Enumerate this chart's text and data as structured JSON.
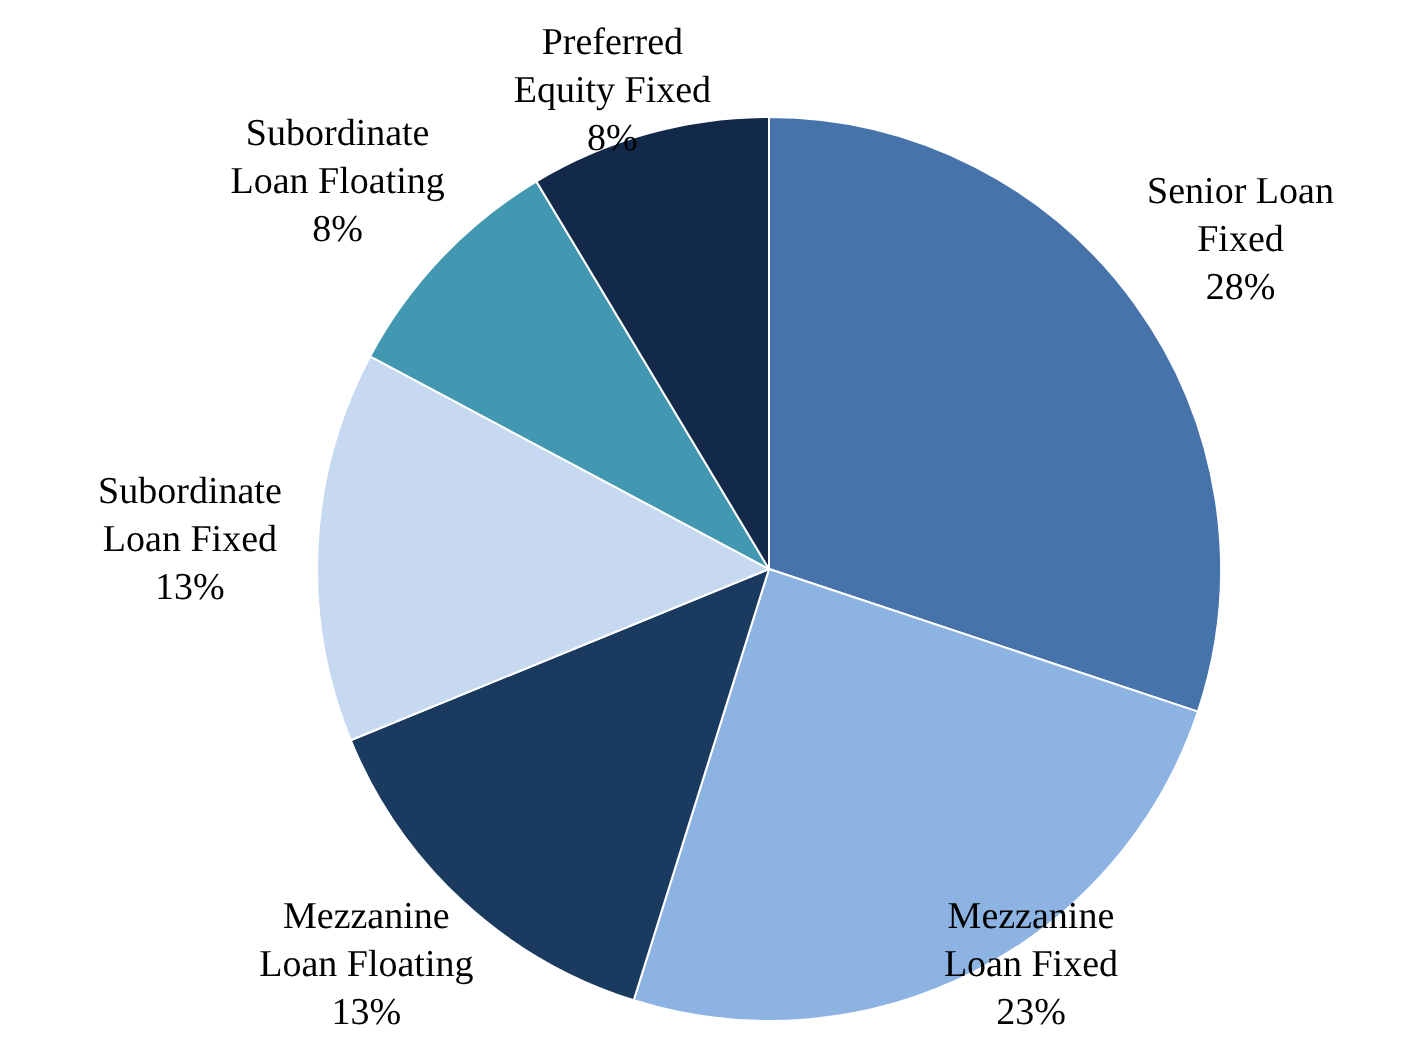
{
  "chart_data": {
    "type": "pie",
    "categories": [
      "Senior Loan Fixed",
      "Mezzanine Loan Fixed",
      "Mezzanine Loan Floating",
      "Subordinate Loan Fixed",
      "Subordinate Loan Floating",
      "Preferred Equity Fixed"
    ],
    "values": [
      28,
      23,
      13,
      13,
      8,
      8
    ],
    "value_labels": [
      "28%",
      "23%",
      "13%",
      "13%",
      "8%",
      "8%"
    ],
    "colors": [
      "#4674aa",
      "#8db3e2",
      "#1b3a5f",
      "#c6d9f0",
      "#4298b0",
      "#13294a"
    ],
    "legend": false
  }
}
